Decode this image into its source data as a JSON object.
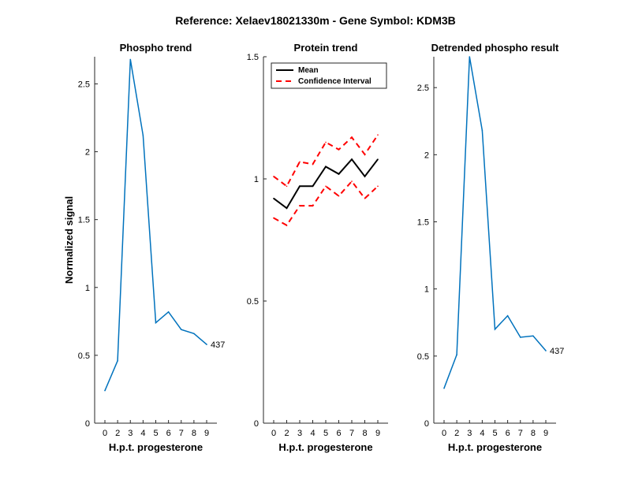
{
  "figure_title": "Reference:  Xelaev18021330m - Gene Symbol:  KDM3B",
  "colors": {
    "line": "#0072BD",
    "mean": "#000000",
    "ci": "#FF0000",
    "axis": "#262626"
  },
  "chart_data": [
    {
      "type": "line",
      "title": "Phospho trend",
      "xlabel": "H.p.t. progesterone",
      "ylabel": "Normalized signal",
      "x_ticks": [
        0,
        2,
        3,
        4,
        5,
        6,
        7,
        8,
        9
      ],
      "y_ticks": [
        0,
        0.5,
        1,
        1.5,
        2,
        2.5
      ],
      "y_tick_labels": [
        "0",
        "0.5",
        "1",
        "1.5",
        "2",
        "2.5"
      ],
      "ylim": [
        0,
        2.7
      ],
      "series": [
        {
          "values": [
            0.24,
            0.46,
            2.68,
            2.12,
            0.74,
            0.82,
            0.69,
            0.66,
            0.58
          ]
        }
      ],
      "annotation": "437"
    },
    {
      "type": "line",
      "title": "Protein trend",
      "xlabel": "H.p.t. progesterone",
      "ylabel": "",
      "x_ticks": [
        0,
        2,
        3,
        4,
        5,
        6,
        7,
        8,
        9
      ],
      "y_ticks": [
        0,
        0.5,
        1,
        1.5
      ],
      "y_tick_labels": [
        "0",
        "0.5",
        "1",
        "1.5"
      ],
      "ylim": [
        0,
        1.5
      ],
      "legend_position": "top-right",
      "series": [
        {
          "name": "Mean",
          "values": [
            0.92,
            0.88,
            0.97,
            0.97,
            1.05,
            1.02,
            1.08,
            1.01,
            1.08
          ]
        },
        {
          "name": "Confidence Interval",
          "values": [
            1.01,
            0.97,
            1.07,
            1.06,
            1.15,
            1.12,
            1.17,
            1.1,
            1.18
          ]
        },
        {
          "values": [
            0.84,
            0.81,
            0.89,
            0.89,
            0.97,
            0.93,
            0.99,
            0.92,
            0.97
          ]
        }
      ]
    },
    {
      "type": "line",
      "title": "Detrended phospho result",
      "xlabel": "H.p.t. progesterone",
      "ylabel": "",
      "x_ticks": [
        0,
        2,
        3,
        4,
        5,
        6,
        7,
        8,
        9
      ],
      "y_ticks": [
        0,
        0.5,
        1,
        1.5,
        2,
        2.5
      ],
      "y_tick_labels": [
        "0",
        "0.5",
        "1",
        "1.5",
        "2",
        "2.5"
      ],
      "ylim": [
        0,
        2.73
      ],
      "series": [
        {
          "values": [
            0.26,
            0.51,
            2.73,
            2.18,
            0.7,
            0.8,
            0.64,
            0.65,
            0.54
          ]
        }
      ],
      "annotation": "437"
    }
  ]
}
